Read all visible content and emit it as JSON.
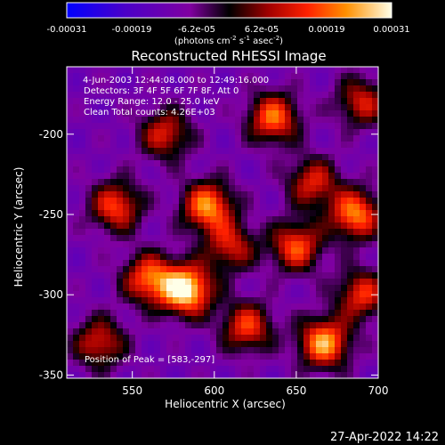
{
  "chart_data": {
    "type": "heatmap",
    "title": "Reconstructed RHESSI Image",
    "xlabel": "Heliocentric X (arcsec)",
    "ylabel": "Heliocentric Y (arcsec)",
    "xlim": [
      510,
      700
    ],
    "ylim": [
      -352,
      -158
    ],
    "x_ticks": [
      "550",
      "600",
      "650",
      "700"
    ],
    "y_ticks": [
      "-200",
      "-250",
      "-300",
      "-350"
    ],
    "colorbar": {
      "ticks": [
        "-0.00031",
        "-0.00019",
        "-6.2e-05",
        "6.2e-05",
        "0.00019",
        "0.00031"
      ],
      "range": [
        -0.00031,
        0.00031
      ],
      "label": "(photons cm",
      "label_sup1": "-2",
      "label_mid": " s",
      "label_sup2": "-1",
      "label_end": " asec",
      "label_sup3": "-2",
      "label_close": ")"
    },
    "annotations": [
      "4-Jun-2003 12:44:08.000 to 12:49:16.000",
      "Detectors: 3F 4F 5F 6F 7F 8F, Att 0",
      "Energy Range: 12.0 - 25.0 keV",
      "Clean     Total counts: 4.26E+03"
    ],
    "peak_text": "Position of Peak = [583,-297]",
    "peak": [
      583,
      -297
    ],
    "sources": [
      {
        "x": 583,
        "y": -297,
        "value": 0.00031
      },
      {
        "x": 596,
        "y": -245,
        "value": 0.00022
      },
      {
        "x": 667,
        "y": -330,
        "value": 0.00024
      },
      {
        "x": 686,
        "y": -250,
        "value": 0.00021
      },
      {
        "x": 636,
        "y": -190,
        "value": 0.00019
      },
      {
        "x": 560,
        "y": -290,
        "value": 0.00018
      },
      {
        "x": 540,
        "y": -245,
        "value": 0.00016
      },
      {
        "x": 650,
        "y": -270,
        "value": 0.00017
      },
      {
        "x": 620,
        "y": -320,
        "value": 0.00015
      },
      {
        "x": 690,
        "y": -300,
        "value": 0.00014
      },
      {
        "x": 570,
        "y": -200,
        "value": 0.00012
      },
      {
        "x": 530,
        "y": -330,
        "value": 0.00012
      },
      {
        "x": 610,
        "y": -270,
        "value": 0.00011
      },
      {
        "x": 660,
        "y": -230,
        "value": 0.00012
      },
      {
        "x": 690,
        "y": -180,
        "value": 0.00011
      }
    ],
    "grid": false
  },
  "timestamp": "27-Apr-2022 14:22"
}
